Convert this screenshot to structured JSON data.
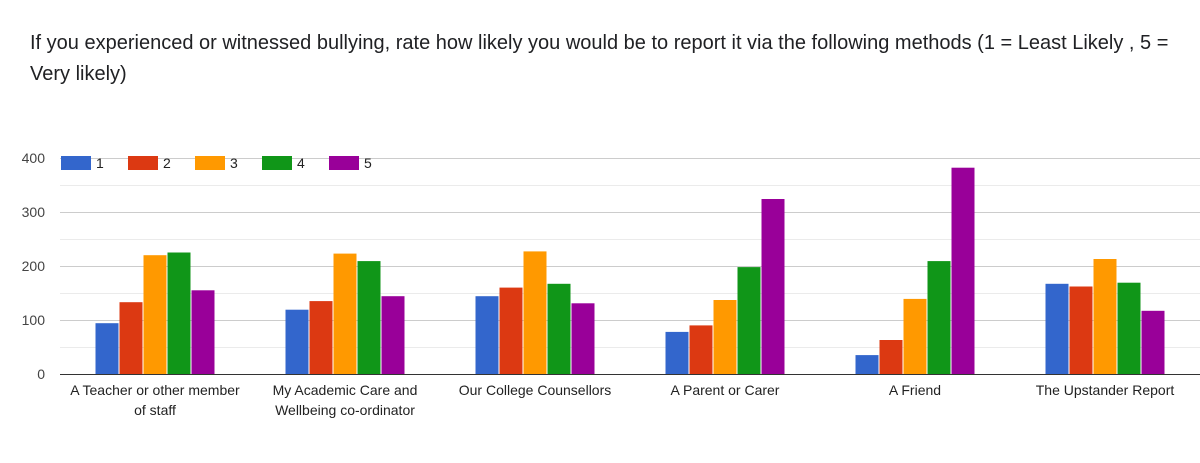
{
  "question": {
    "text": "If you experienced or witnessed bullying, rate how likely you would be to report it via the following methods  (1 = Least Likely , 5 = Very likely)"
  },
  "chart_data": {
    "type": "bar",
    "categories": [
      "A Teacher or other member of staff",
      "My Academic Care and Wellbeing co-ordinator",
      "Our College Counsellors",
      "A Parent or Carer",
      "A Friend",
      "The Upstander Report"
    ],
    "series": [
      {
        "name": "1",
        "color": "#3366cc",
        "values": [
          94,
          119,
          144,
          78,
          35,
          167
        ]
      },
      {
        "name": "2",
        "color": "#dc3912",
        "values": [
          133,
          135,
          160,
          90,
          63,
          162
        ]
      },
      {
        "name": "3",
        "color": "#ff9900",
        "values": [
          220,
          223,
          227,
          137,
          139,
          213
        ]
      },
      {
        "name": "4",
        "color": "#109618",
        "values": [
          225,
          209,
          167,
          198,
          209,
          169
        ]
      },
      {
        "name": "5",
        "color": "#990099",
        "values": [
          155,
          144,
          131,
          324,
          382,
          117
        ]
      }
    ],
    "ylim": [
      0,
      400
    ],
    "yticks": [
      0,
      100,
      200,
      300,
      400
    ],
    "gridlines": true,
    "legend_position": "top-left",
    "xlabel": "",
    "ylabel": ""
  }
}
